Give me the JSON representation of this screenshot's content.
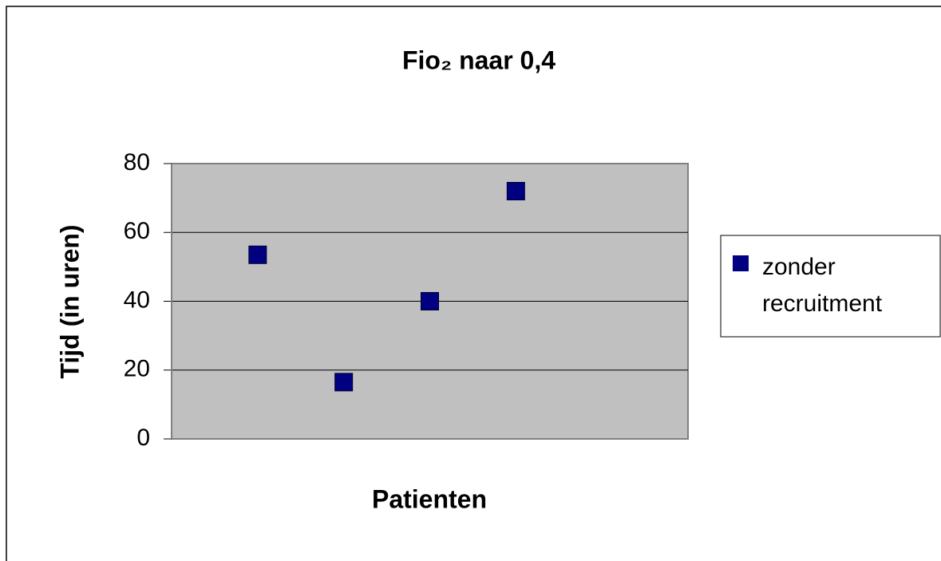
{
  "chart_data": {
    "type": "scatter",
    "title": "Fio₂ naar 0,4",
    "x_label": "Patienten",
    "y_label": "Tijd (in uren)",
    "series": [
      {
        "name": "zonder recruitment",
        "color": "#000080",
        "x": [
          1,
          2,
          3,
          4
        ],
        "values": [
          53.5,
          16.5,
          40,
          72
        ]
      }
    ],
    "xlim": [
      0,
      6
    ],
    "ylim": [
      0,
      80
    ],
    "yticks": [
      0,
      20,
      40,
      60,
      80
    ],
    "grid": true,
    "legend": "right"
  }
}
